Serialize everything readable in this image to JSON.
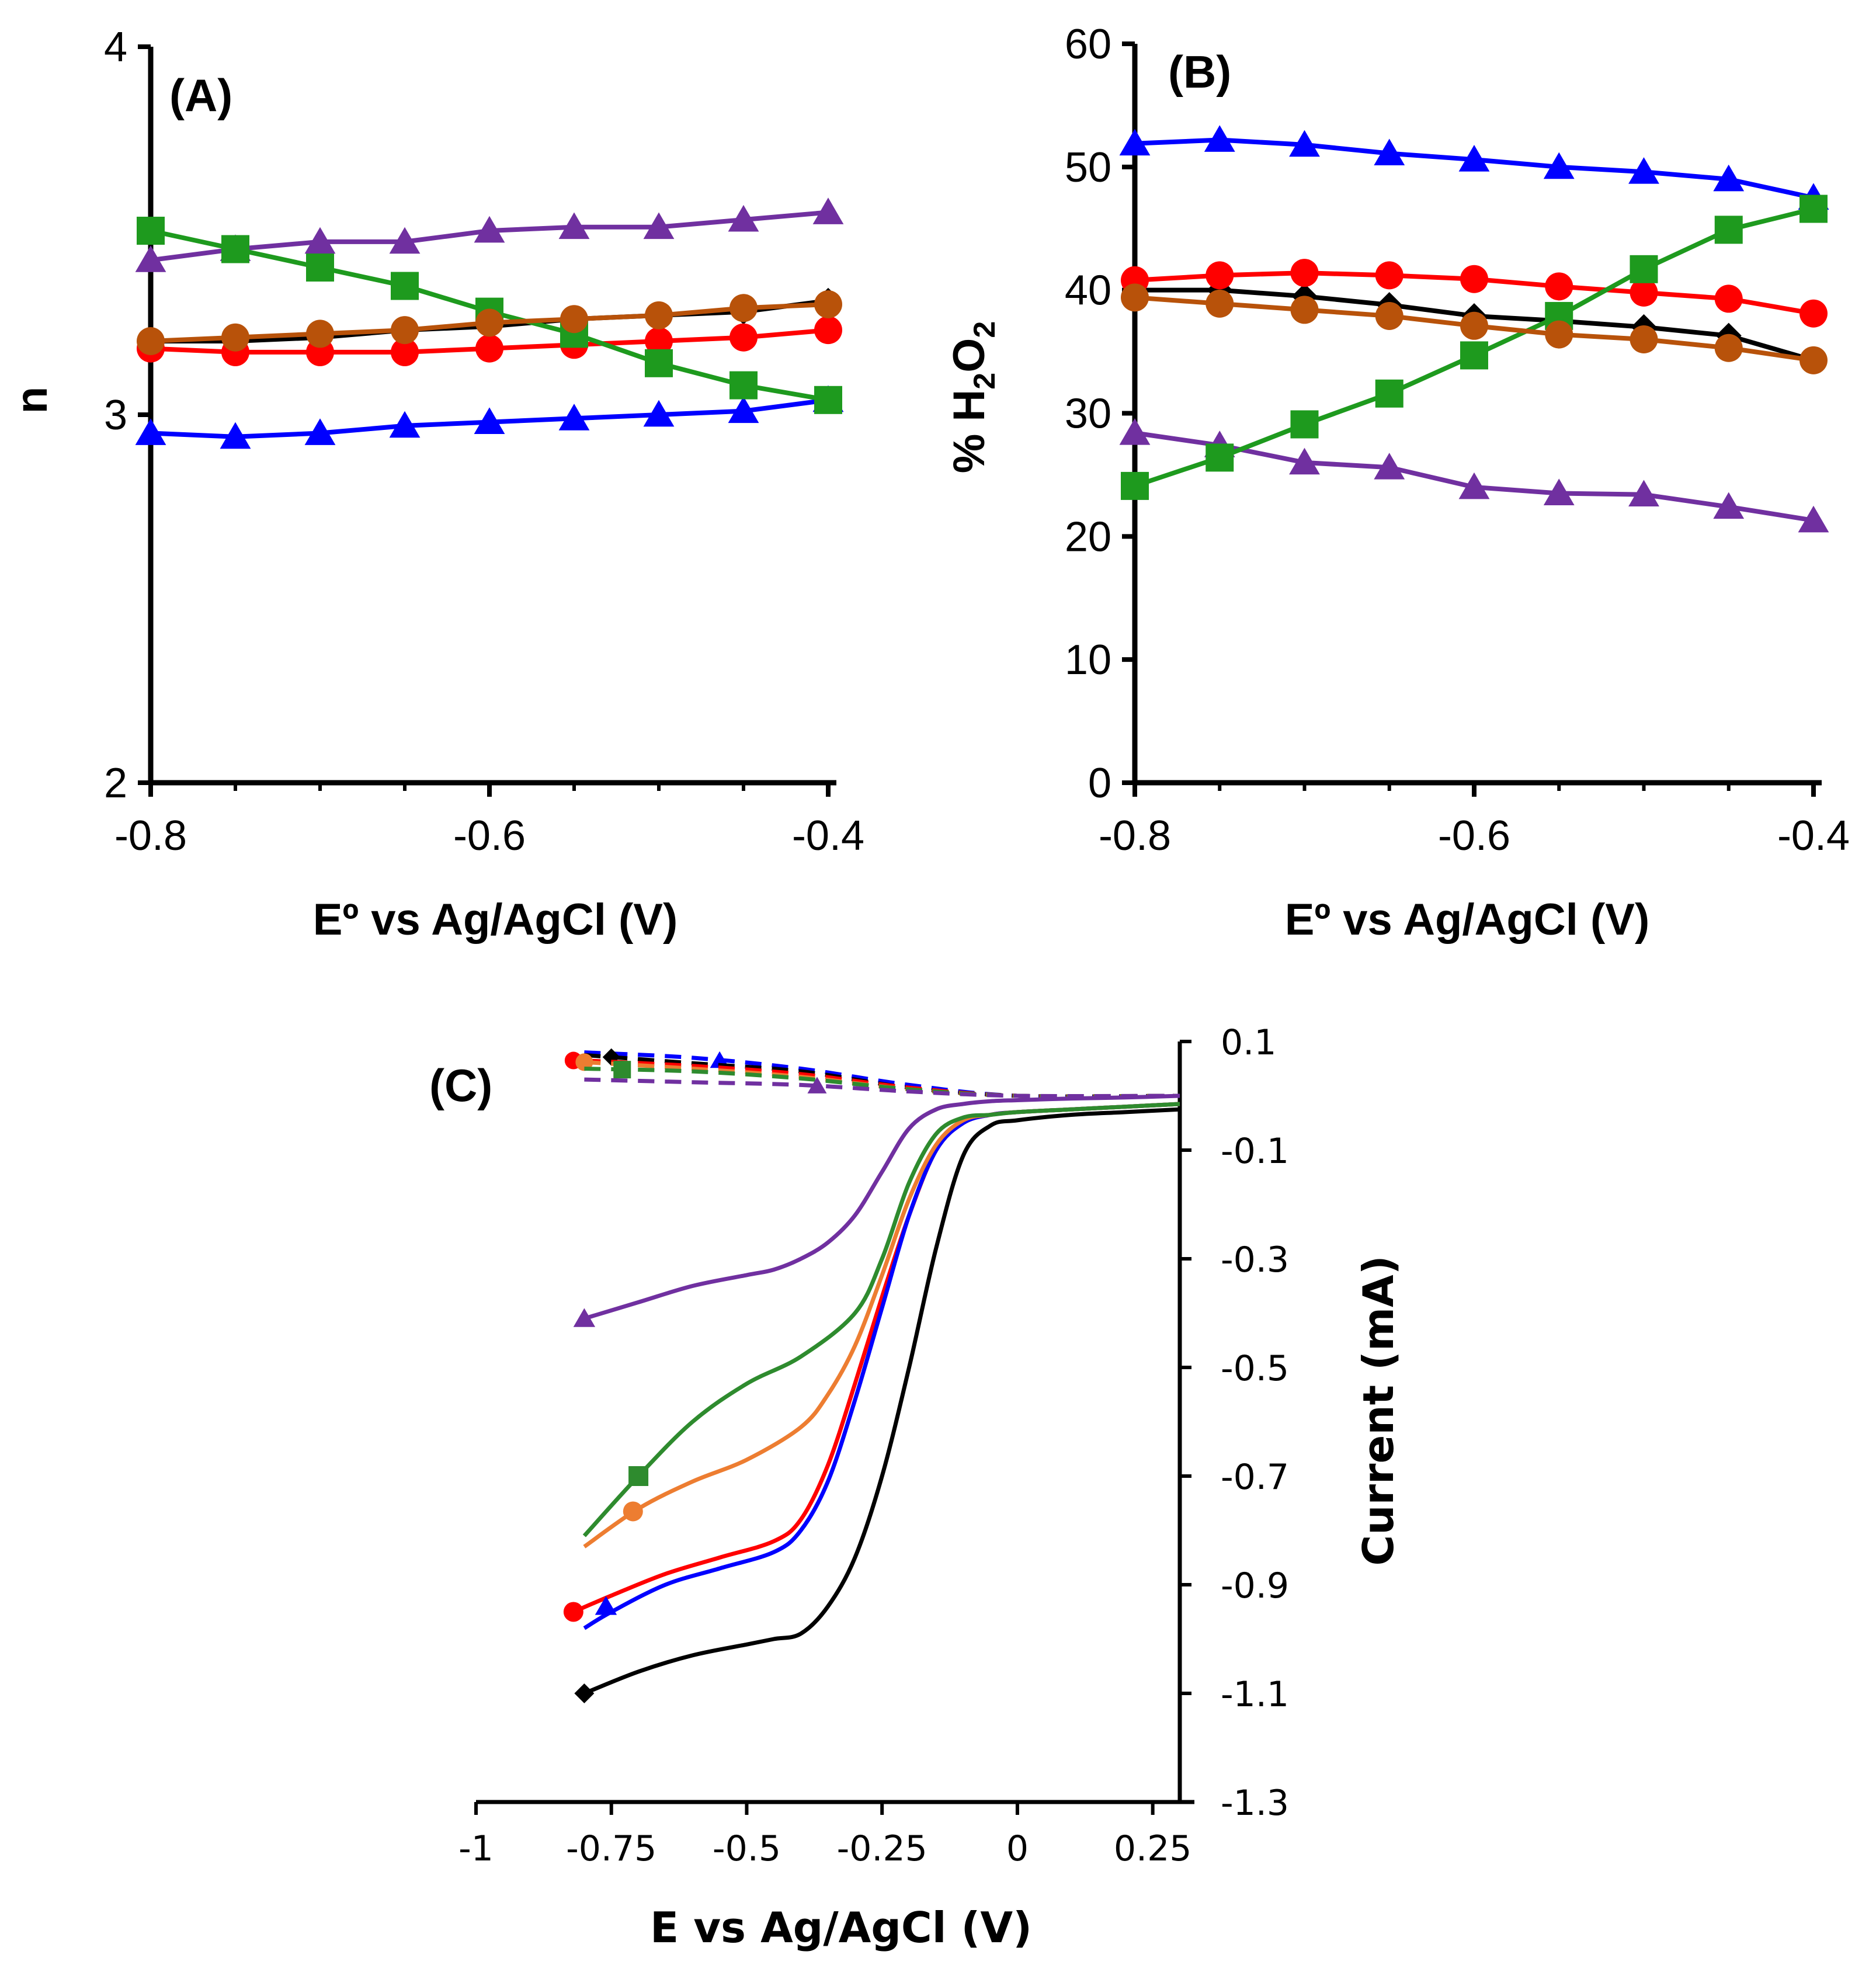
{
  "chart_data": [
    {
      "type": "line",
      "panel": "(A)",
      "xlabel": "Eº vs Ag/AgCl (V)",
      "ylabel": "n",
      "xlim": [
        -0.8,
        -0.4
      ],
      "ylim": [
        2,
        4
      ],
      "xticks": [
        "-0.8",
        "-0.6",
        "-0.4"
      ],
      "yticks": [
        "2",
        "3",
        "4"
      ],
      "x": [
        -0.8,
        -0.75,
        -0.7,
        -0.65,
        -0.6,
        -0.55,
        -0.5,
        -0.45,
        -0.4
      ],
      "series": [
        {
          "name": "black",
          "color": "#000000",
          "marker": "diamond",
          "values": [
            3.2,
            3.2,
            3.21,
            3.23,
            3.24,
            3.26,
            3.27,
            3.28,
            3.31
          ]
        },
        {
          "name": "red",
          "color": "#ff0000",
          "marker": "circle",
          "values": [
            3.18,
            3.17,
            3.17,
            3.17,
            3.18,
            3.19,
            3.2,
            3.21,
            3.23
          ]
        },
        {
          "name": "blue",
          "color": "#0000ff",
          "marker": "triangle",
          "values": [
            2.95,
            2.94,
            2.95,
            2.97,
            2.98,
            2.99,
            3.0,
            3.01,
            3.04
          ]
        },
        {
          "name": "purple",
          "color": "#7030a0",
          "marker": "triangle",
          "values": [
            3.42,
            3.45,
            3.47,
            3.47,
            3.5,
            3.51,
            3.51,
            3.53,
            3.55
          ]
        },
        {
          "name": "green",
          "color": "#1e9a1e",
          "marker": "square",
          "values": [
            3.5,
            3.45,
            3.4,
            3.35,
            3.28,
            3.22,
            3.14,
            3.08,
            3.04
          ]
        },
        {
          "name": "brown",
          "color": "#b8520a",
          "marker": "circle",
          "values": [
            3.2,
            3.21,
            3.22,
            3.23,
            3.25,
            3.26,
            3.27,
            3.29,
            3.3
          ]
        }
      ]
    },
    {
      "type": "line",
      "panel": "(B)",
      "xlabel": "Eº vs Ag/AgCl (V)",
      "ylabel": "% H2O2",
      "ylabel_parts": [
        "% H",
        "2",
        "O",
        "2"
      ],
      "xlim": [
        -0.8,
        -0.4
      ],
      "ylim": [
        0,
        60
      ],
      "xticks": [
        "-0.8",
        "-0.6",
        "-0.4"
      ],
      "yticks": [
        "0",
        "10",
        "20",
        "30",
        "40",
        "50",
        "60"
      ],
      "x": [
        -0.8,
        -0.75,
        -0.7,
        -0.65,
        -0.6,
        -0.55,
        -0.5,
        -0.45,
        -0.4
      ],
      "series": [
        {
          "name": "black",
          "color": "#000000",
          "marker": "diamond",
          "values": [
            40.0,
            40.0,
            39.5,
            38.8,
            37.9,
            37.5,
            37.0,
            36.3,
            34.3
          ]
        },
        {
          "name": "red",
          "color": "#ff0000",
          "marker": "circle",
          "values": [
            40.8,
            41.2,
            41.4,
            41.2,
            40.9,
            40.3,
            39.8,
            39.3,
            38.1
          ]
        },
        {
          "name": "blue",
          "color": "#0000ff",
          "marker": "triangle",
          "values": [
            51.9,
            52.2,
            51.8,
            51.1,
            50.6,
            50.0,
            49.6,
            49.0,
            47.5
          ]
        },
        {
          "name": "purple",
          "color": "#7030a0",
          "marker": "triangle",
          "values": [
            28.4,
            27.4,
            26.0,
            25.6,
            24.0,
            23.5,
            23.4,
            22.4,
            21.3
          ]
        },
        {
          "name": "green",
          "color": "#1e9a1e",
          "marker": "square",
          "values": [
            24.1,
            26.4,
            29.1,
            31.6,
            34.7,
            37.9,
            41.7,
            44.9,
            46.6
          ]
        },
        {
          "name": "brown",
          "color": "#b8520a",
          "marker": "circle",
          "values": [
            39.4,
            38.9,
            38.4,
            37.9,
            37.1,
            36.4,
            36.0,
            35.3,
            34.3
          ]
        }
      ]
    },
    {
      "type": "line",
      "panel": "(C)",
      "xlabel": "E vs Ag/AgCl (V)",
      "ylabel": "Current (mA)",
      "xlim": [
        -1,
        0.3
      ],
      "ylim": [
        -1.3,
        0.1
      ],
      "xticks": [
        "-1",
        "-0.75",
        "-0.5",
        "-0.25",
        "0",
        "0.25"
      ],
      "yticks": [
        "0.1",
        "-0.1",
        "-0.3",
        "-0.5",
        "-0.7",
        "-0.9",
        "-1.1",
        "-1.3"
      ],
      "series": [
        {
          "name": "black",
          "color": "#000000",
          "marker": "diamond",
          "x": [
            -0.8,
            -0.7,
            -0.6,
            -0.5,
            -0.45,
            -0.4,
            -0.35,
            -0.3,
            -0.25,
            -0.2,
            -0.15,
            -0.1,
            -0.05,
            0.0,
            0.1,
            0.2,
            0.3
          ],
          "values": [
            -1.1,
            -1.06,
            -1.03,
            -1.01,
            -1.0,
            -0.99,
            -0.94,
            -0.85,
            -0.7,
            -0.5,
            -0.28,
            -0.11,
            -0.055,
            -0.045,
            -0.035,
            -0.03,
            -0.025
          ]
        },
        {
          "name": "red",
          "color": "#ff0000",
          "marker": "circle",
          "x": [
            -0.82,
            -0.75,
            -0.65,
            -0.55,
            -0.45,
            -0.4,
            -0.35,
            -0.3,
            -0.25,
            -0.2,
            -0.15,
            -0.1,
            -0.05,
            0.0,
            0.1,
            0.2,
            0.3
          ],
          "values": [
            -0.95,
            -0.92,
            -0.88,
            -0.85,
            -0.82,
            -0.78,
            -0.68,
            -0.53,
            -0.37,
            -0.22,
            -0.1,
            -0.05,
            -0.035,
            -0.03,
            -0.025,
            -0.02,
            -0.015
          ]
        },
        {
          "name": "blue",
          "color": "#0000ff",
          "marker": "triangle",
          "x": [
            -0.8,
            -0.75,
            -0.65,
            -0.55,
            -0.45,
            -0.4,
            -0.35,
            -0.3,
            -0.25,
            -0.2,
            -0.15,
            -0.1,
            -0.05,
            0.0,
            0.1,
            0.2,
            0.3
          ],
          "values": [
            -0.98,
            -0.95,
            -0.9,
            -0.87,
            -0.84,
            -0.8,
            -0.71,
            -0.56,
            -0.39,
            -0.22,
            -0.1,
            -0.05,
            -0.035,
            -0.03,
            -0.025,
            -0.02,
            -0.015
          ]
        },
        {
          "name": "orange",
          "color": "#ed7d31",
          "marker": "circle",
          "x": [
            -0.8,
            -0.7,
            -0.6,
            -0.5,
            -0.4,
            -0.35,
            -0.3,
            -0.25,
            -0.2,
            -0.15,
            -0.1,
            -0.05,
            0.0,
            0.1,
            0.2,
            0.3
          ],
          "values": [
            -0.83,
            -0.76,
            -0.71,
            -0.67,
            -0.61,
            -0.55,
            -0.46,
            -0.33,
            -0.19,
            -0.09,
            -0.045,
            -0.035,
            -0.03,
            -0.025,
            -0.02,
            -0.015
          ]
        },
        {
          "name": "green",
          "color": "#2e8b2e",
          "marker": "square",
          "x": [
            -0.8,
            -0.7,
            -0.6,
            -0.5,
            -0.4,
            -0.3,
            -0.25,
            -0.2,
            -0.15,
            -0.1,
            -0.05,
            0.0,
            0.1,
            0.2,
            0.3
          ],
          "values": [
            -0.81,
            -0.7,
            -0.6,
            -0.53,
            -0.48,
            -0.4,
            -0.3,
            -0.16,
            -0.07,
            -0.04,
            -0.035,
            -0.03,
            -0.025,
            -0.02,
            -0.015
          ]
        },
        {
          "name": "purple",
          "color": "#7030a0",
          "marker": "triangle",
          "x": [
            -0.8,
            -0.7,
            -0.6,
            -0.5,
            -0.45,
            -0.4,
            -0.35,
            -0.3,
            -0.25,
            -0.2,
            -0.15,
            -0.1,
            -0.05,
            0.0,
            0.1,
            0.2,
            0.3
          ],
          "values": [
            -0.41,
            -0.38,
            -0.35,
            -0.33,
            -0.32,
            -0.3,
            -0.27,
            -0.22,
            -0.14,
            -0.06,
            -0.025,
            -0.015,
            -0.01,
            -0.008,
            -0.005,
            -0.003,
            0.0
          ]
        }
      ],
      "dashed_series": [
        {
          "name": "blue",
          "color": "#0000ff",
          "marker": "triangle",
          "marker_x": -0.55,
          "x": [
            -0.8,
            -0.6,
            -0.4,
            -0.2,
            0.0,
            0.3
          ],
          "values": [
            0.08,
            0.07,
            0.05,
            0.02,
            0.0,
            0.0
          ]
        },
        {
          "name": "black",
          "color": "#000000",
          "marker": "diamond",
          "marker_x": -0.75,
          "x": [
            -0.8,
            -0.6,
            -0.4,
            -0.2,
            0.0,
            0.3
          ],
          "values": [
            0.075,
            0.06,
            0.045,
            0.015,
            0.0,
            0.0
          ]
        },
        {
          "name": "red",
          "color": "#ff0000",
          "marker": "circle",
          "marker_x": -0.82,
          "x": [
            -0.8,
            -0.6,
            -0.4,
            -0.2,
            0.0,
            0.3
          ],
          "values": [
            0.065,
            0.055,
            0.04,
            0.015,
            0.0,
            0.0
          ]
        },
        {
          "name": "orange",
          "color": "#ed7d31",
          "marker": "circle",
          "marker_x": -0.8,
          "x": [
            -0.8,
            -0.6,
            -0.4,
            -0.2,
            0.0,
            0.3
          ],
          "values": [
            0.062,
            0.05,
            0.035,
            0.012,
            0.0,
            0.0
          ]
        },
        {
          "name": "green",
          "color": "#2e8b2e",
          "marker": "square",
          "marker_x": -0.73,
          "x": [
            -0.8,
            -0.6,
            -0.4,
            -0.2,
            0.0,
            0.3
          ],
          "values": [
            0.05,
            0.045,
            0.032,
            0.012,
            0.0,
            0.0
          ]
        },
        {
          "name": "purple",
          "color": "#7030a0",
          "marker": "triangle",
          "marker_x": -0.37,
          "x": [
            -0.8,
            -0.6,
            -0.4,
            -0.2,
            0.0,
            0.3
          ],
          "values": [
            0.03,
            0.025,
            0.02,
            0.008,
            0.0,
            0.0
          ]
        }
      ]
    }
  ]
}
